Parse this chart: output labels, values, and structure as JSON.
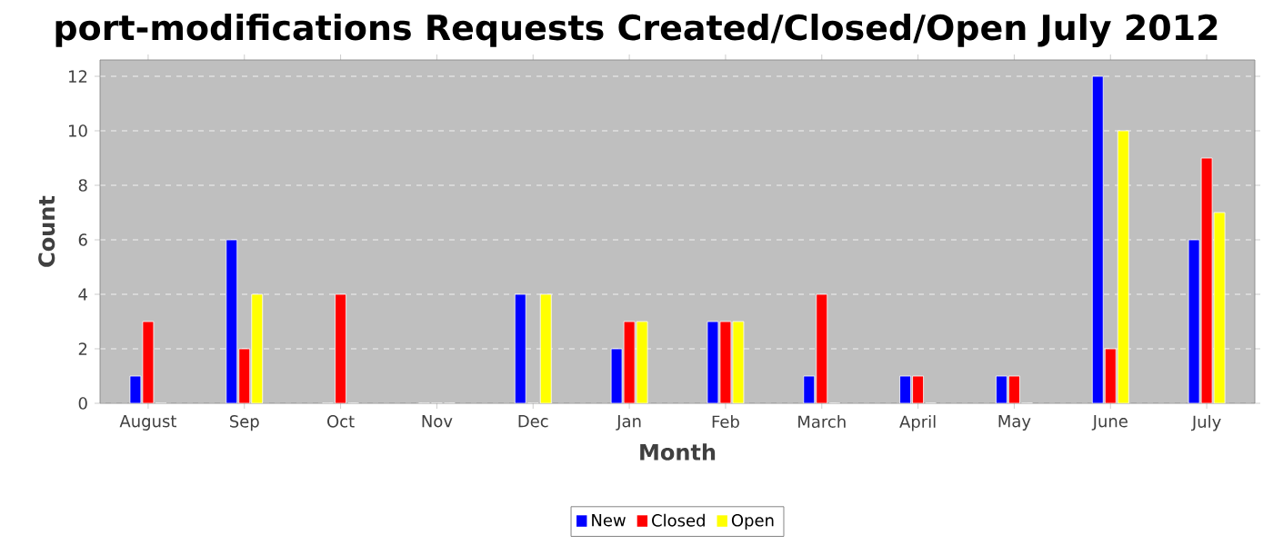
{
  "chart_data": {
    "type": "bar",
    "title": "port-modifications Requests Created/Closed/Open July 2012",
    "xlabel": "Month",
    "ylabel": "Count",
    "categories": [
      "August",
      "Sep",
      "Oct",
      "Nov",
      "Dec",
      "Jan",
      "Feb",
      "March",
      "April",
      "May",
      "June",
      "July"
    ],
    "series": [
      {
        "name": "New",
        "color": "#0000ff",
        "values": [
          1,
          6,
          0,
          0,
          4,
          2,
          3,
          1,
          1,
          1,
          12,
          6
        ]
      },
      {
        "name": "Closed",
        "color": "#ff0000",
        "values": [
          3,
          2,
          4,
          0,
          0,
          3,
          3,
          4,
          1,
          1,
          2,
          9
        ]
      },
      {
        "name": "Open",
        "color": "#ffff00",
        "values": [
          0,
          4,
          0,
          0,
          4,
          3,
          3,
          0,
          0,
          0,
          10,
          7
        ]
      }
    ],
    "ylim": [
      0,
      12.6
    ],
    "yticks": [
      0,
      2,
      4,
      6,
      8,
      10,
      12
    ],
    "grid": "y",
    "legend": "bottom"
  }
}
